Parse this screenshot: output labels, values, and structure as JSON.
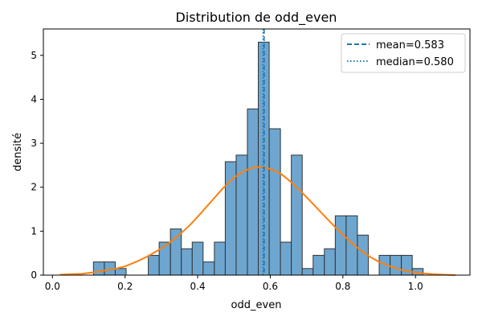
{
  "chart_data": {
    "type": "histogram",
    "title": "Distribution de odd_even",
    "xlabel": "odd_even",
    "ylabel": "densité",
    "xlim": [
      -0.025,
      1.15
    ],
    "ylim": [
      0,
      5.6
    ],
    "x_ticks": [
      {
        "value": 0.0,
        "label": "0.0"
      },
      {
        "value": 0.2,
        "label": "0.2"
      },
      {
        "value": 0.4,
        "label": "0.4"
      },
      {
        "value": 0.6,
        "label": "0.6"
      },
      {
        "value": 0.8,
        "label": "0.8"
      },
      {
        "value": 1.0,
        "label": "1.0"
      }
    ],
    "y_ticks": [
      {
        "value": 0,
        "label": "0"
      },
      {
        "value": 1,
        "label": "1"
      },
      {
        "value": 2,
        "label": "2"
      },
      {
        "value": 3,
        "label": "3"
      },
      {
        "value": 4,
        "label": "4"
      },
      {
        "value": 5,
        "label": "5"
      }
    ],
    "bin_width": 0.0303,
    "bins": [
      {
        "x0": 0.113,
        "x1": 0.143,
        "density": 0.3
      },
      {
        "x0": 0.143,
        "x1": 0.173,
        "density": 0.3
      },
      {
        "x0": 0.173,
        "x1": 0.203,
        "density": 0.15
      },
      {
        "x0": 0.203,
        "x1": 0.234,
        "density": 0.0
      },
      {
        "x0": 0.234,
        "x1": 0.264,
        "density": 0.0
      },
      {
        "x0": 0.264,
        "x1": 0.294,
        "density": 0.45
      },
      {
        "x0": 0.294,
        "x1": 0.325,
        "density": 0.75
      },
      {
        "x0": 0.325,
        "x1": 0.355,
        "density": 1.05
      },
      {
        "x0": 0.355,
        "x1": 0.385,
        "density": 0.6
      },
      {
        "x0": 0.385,
        "x1": 0.415,
        "density": 0.75
      },
      {
        "x0": 0.415,
        "x1": 0.446,
        "density": 0.3
      },
      {
        "x0": 0.446,
        "x1": 0.476,
        "density": 0.75
      },
      {
        "x0": 0.476,
        "x1": 0.506,
        "density": 2.58
      },
      {
        "x0": 0.506,
        "x1": 0.537,
        "density": 2.73
      },
      {
        "x0": 0.537,
        "x1": 0.567,
        "density": 3.78
      },
      {
        "x0": 0.567,
        "x1": 0.597,
        "density": 5.3
      },
      {
        "x0": 0.597,
        "x1": 0.628,
        "density": 3.33
      },
      {
        "x0": 0.628,
        "x1": 0.658,
        "density": 0.75
      },
      {
        "x0": 0.658,
        "x1": 0.688,
        "density": 2.73
      },
      {
        "x0": 0.688,
        "x1": 0.718,
        "density": 0.15
      },
      {
        "x0": 0.718,
        "x1": 0.749,
        "density": 0.45
      },
      {
        "x0": 0.749,
        "x1": 0.779,
        "density": 0.6
      },
      {
        "x0": 0.779,
        "x1": 0.809,
        "density": 1.35
      },
      {
        "x0": 0.809,
        "x1": 0.84,
        "density": 1.35
      },
      {
        "x0": 0.84,
        "x1": 0.87,
        "density": 0.91
      },
      {
        "x0": 0.87,
        "x1": 0.9,
        "density": 0.0
      },
      {
        "x0": 0.9,
        "x1": 0.93,
        "density": 0.45
      },
      {
        "x0": 0.93,
        "x1": 0.961,
        "density": 0.45
      },
      {
        "x0": 0.961,
        "x1": 0.991,
        "density": 0.45
      },
      {
        "x0": 0.991,
        "x1": 1.021,
        "density": 0.15
      }
    ],
    "kde": {
      "x": [
        0.02,
        0.05,
        0.08,
        0.11,
        0.14,
        0.17,
        0.2,
        0.23,
        0.26,
        0.29,
        0.32,
        0.35,
        0.38,
        0.41,
        0.44,
        0.47,
        0.5,
        0.53,
        0.56,
        0.58,
        0.6,
        0.63,
        0.66,
        0.69,
        0.72,
        0.75,
        0.78,
        0.81,
        0.84,
        0.87,
        0.9,
        0.93,
        0.96,
        0.99,
        1.02,
        1.05,
        1.08,
        1.11
      ],
      "y": [
        0.01,
        0.02,
        0.03,
        0.06,
        0.1,
        0.14,
        0.2,
        0.3,
        0.42,
        0.56,
        0.72,
        0.92,
        1.15,
        1.42,
        1.7,
        1.98,
        2.22,
        2.38,
        2.46,
        2.45,
        2.42,
        2.3,
        2.1,
        1.86,
        1.6,
        1.34,
        1.08,
        0.84,
        0.62,
        0.44,
        0.3,
        0.2,
        0.12,
        0.07,
        0.04,
        0.02,
        0.01,
        0.0
      ]
    },
    "mean": 0.583,
    "median": 0.58,
    "legend": {
      "position": "upper right",
      "entries": [
        {
          "label": "mean=0.583",
          "style": "dashed",
          "color": "#1f77b4"
        },
        {
          "label": "median=0.580",
          "style": "dotted",
          "color": "#1f77b4"
        }
      ]
    },
    "colors": {
      "bar_fill": "#6ea6cf",
      "bar_edge": "#333333",
      "kde": "#ff7f0e",
      "mean_line": "#1f77b4",
      "median_line": "#1f77b4"
    },
    "grid": false
  }
}
